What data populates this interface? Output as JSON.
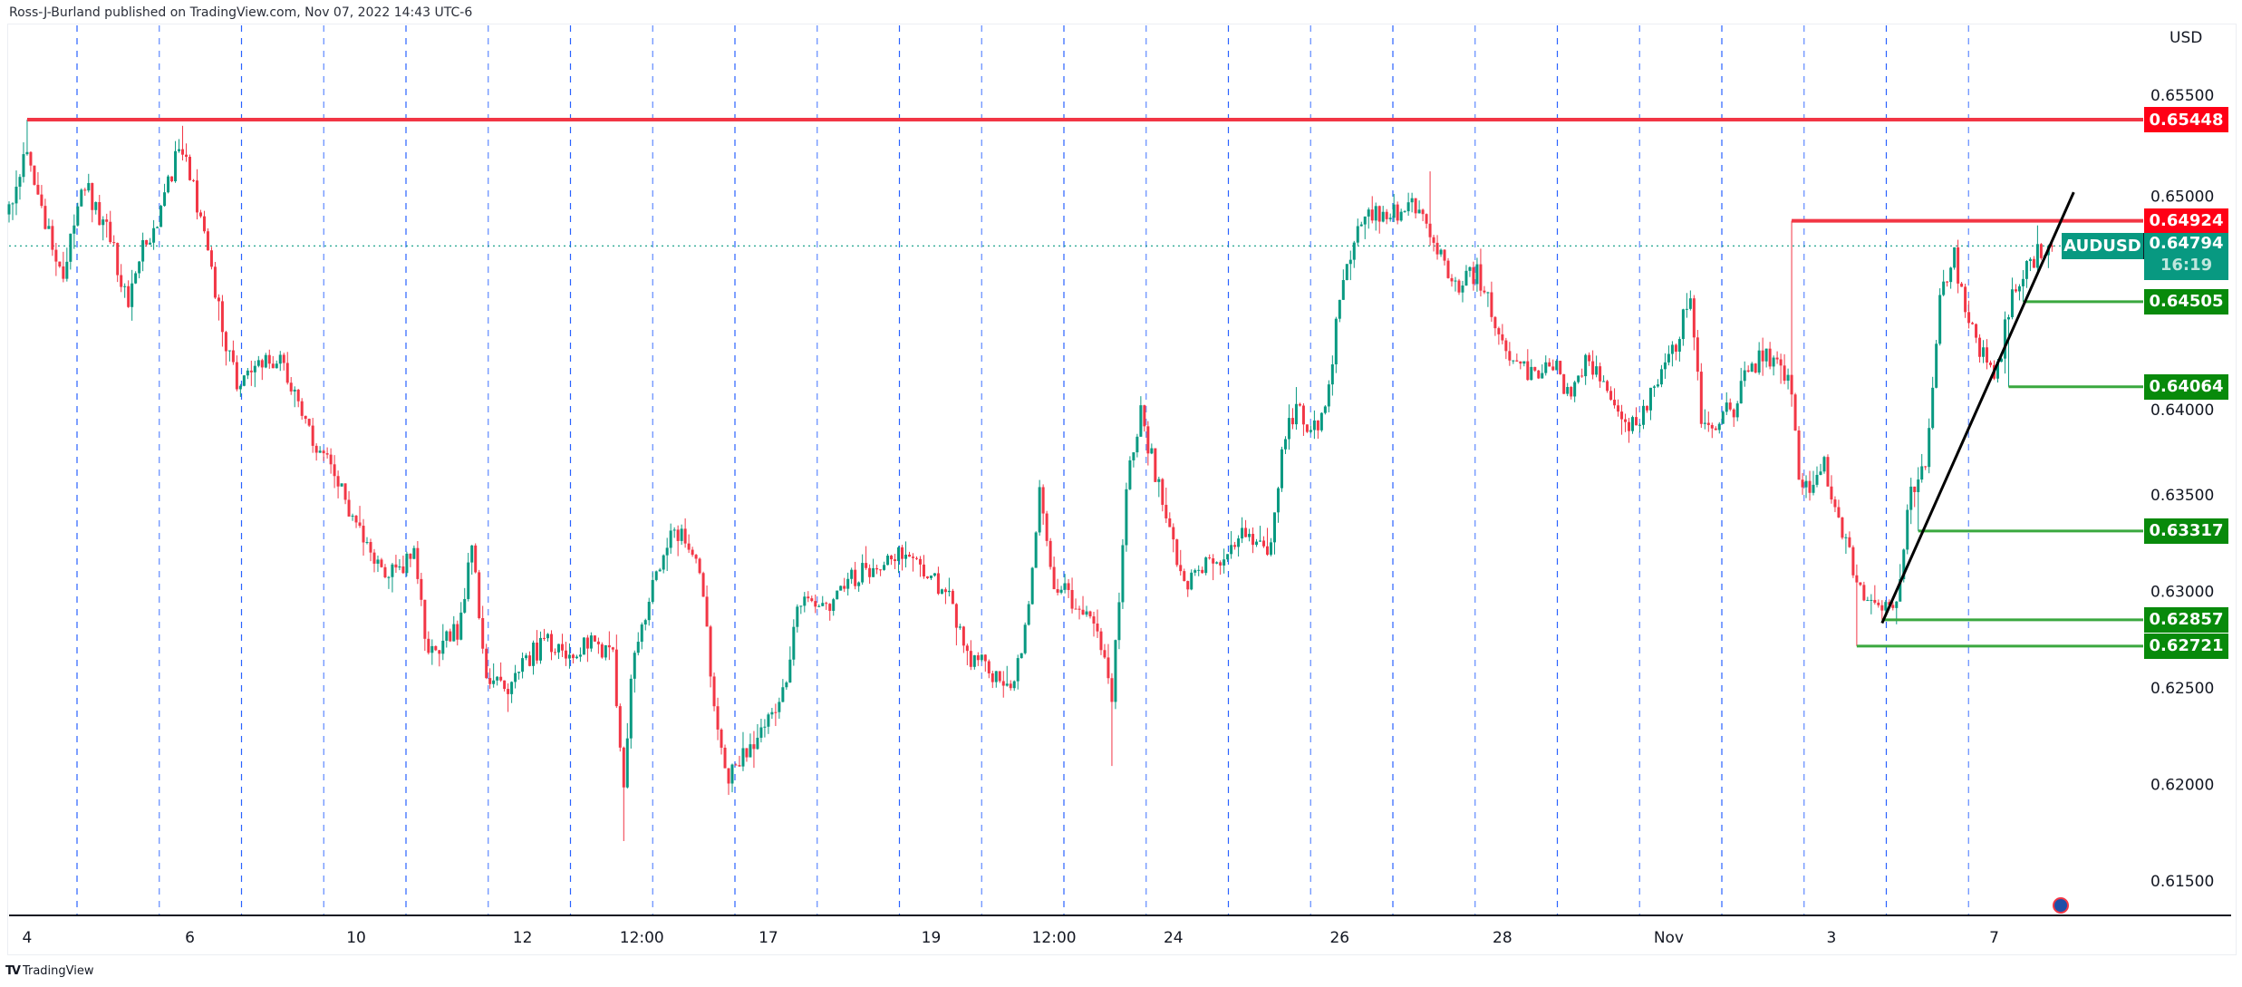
{
  "header": {
    "text": "Ross-J-Burland published on TradingView.com, Nov 07, 2022 14:43 UTC-6"
  },
  "footer": {
    "brand": "TradingView"
  },
  "colors": {
    "up": "#089981",
    "down": "#f23645",
    "resistance": "#f23645",
    "support": "#3aa83f",
    "support_label": "#088a0b",
    "resistance_label": "#ff0016",
    "grid": "#2962ff",
    "trendline": "#000000"
  },
  "chart_data": {
    "type": "candlestick",
    "symbol": "AUDUSD",
    "currency": "USD",
    "last_price": "0.64794",
    "countdown": "16:19",
    "ylim": [
      0.6125,
      0.6575
    ],
    "y_ticks": [
      "0.65500",
      "0.65000",
      "0.64000",
      "0.63500",
      "0.63000",
      "0.62500",
      "0.62000",
      "0.61500"
    ],
    "x_ticks": [
      {
        "label": "4",
        "bar": 5
      },
      {
        "label": "6",
        "bar": 50
      },
      {
        "label": "10",
        "bar": 96
      },
      {
        "label": "12",
        "bar": 142
      },
      {
        "label": "12:00",
        "bar": 175
      },
      {
        "label": "17",
        "bar": 210
      },
      {
        "label": "19",
        "bar": 255
      },
      {
        "label": "12:00",
        "bar": 289
      },
      {
        "label": "24",
        "bar": 322
      },
      {
        "label": "26",
        "bar": 368
      },
      {
        "label": "28",
        "bar": 413
      },
      {
        "label": "Nov",
        "bar": 459
      },
      {
        "label": "3",
        "bar": 504
      },
      {
        "label": "7",
        "bar": 549
      }
    ],
    "bars": 566,
    "close_path": [
      [
        0,
        0.64957
      ],
      [
        5,
        0.65327
      ],
      [
        9,
        0.64957
      ],
      [
        15,
        0.6466
      ],
      [
        21,
        0.65105
      ],
      [
        27,
        0.64883
      ],
      [
        33,
        0.64512
      ],
      [
        37,
        0.64771
      ],
      [
        43,
        0.65031
      ],
      [
        47,
        0.65327
      ],
      [
        51,
        0.65105
      ],
      [
        55,
        0.64734
      ],
      [
        59,
        0.64364
      ],
      [
        63,
        0.64105
      ],
      [
        69,
        0.64179
      ],
      [
        75,
        0.64216
      ],
      [
        80,
        0.63994
      ],
      [
        84,
        0.63771
      ],
      [
        90,
        0.63623
      ],
      [
        94,
        0.63401
      ],
      [
        100,
        0.63179
      ],
      [
        106,
        0.63105
      ],
      [
        112,
        0.63179
      ],
      [
        116,
        0.6266
      ],
      [
        124,
        0.62808
      ],
      [
        128,
        0.63215
      ],
      [
        132,
        0.62586
      ],
      [
        138,
        0.62512
      ],
      [
        143,
        0.6266
      ],
      [
        149,
        0.62734
      ],
      [
        155,
        0.62697
      ],
      [
        163,
        0.62734
      ],
      [
        167,
        0.6266
      ],
      [
        170,
        0.6203
      ],
      [
        173,
        0.62734
      ],
      [
        177,
        0.62956
      ],
      [
        183,
        0.63327
      ],
      [
        187,
        0.6329
      ],
      [
        191,
        0.63105
      ],
      [
        195,
        0.62438
      ],
      [
        199,
        0.6203
      ],
      [
        203,
        0.62141
      ],
      [
        209,
        0.62327
      ],
      [
        215,
        0.62512
      ],
      [
        218,
        0.62956
      ],
      [
        224,
        0.62882
      ],
      [
        230,
        0.63031
      ],
      [
        236,
        0.63105
      ],
      [
        242,
        0.63179
      ],
      [
        248,
        0.63215
      ],
      [
        254,
        0.63105
      ],
      [
        260,
        0.62956
      ],
      [
        266,
        0.6266
      ],
      [
        272,
        0.62586
      ],
      [
        278,
        0.62512
      ],
      [
        282,
        0.62956
      ],
      [
        285,
        0.63512
      ],
      [
        289,
        0.63031
      ],
      [
        295,
        0.62956
      ],
      [
        301,
        0.62808
      ],
      [
        305,
        0.62438
      ],
      [
        309,
        0.63549
      ],
      [
        313,
        0.6392
      ],
      [
        317,
        0.63623
      ],
      [
        321,
        0.63327
      ],
      [
        325,
        0.63031
      ],
      [
        329,
        0.63105
      ],
      [
        335,
        0.63179
      ],
      [
        341,
        0.63327
      ],
      [
        345,
        0.6329
      ],
      [
        349,
        0.63215
      ],
      [
        353,
        0.63846
      ],
      [
        356,
        0.63957
      ],
      [
        360,
        0.63846
      ],
      [
        364,
        0.6392
      ],
      [
        368,
        0.64512
      ],
      [
        372,
        0.64846
      ],
      [
        376,
        0.64957
      ],
      [
        382,
        0.64957
      ],
      [
        388,
        0.64994
      ],
      [
        392,
        0.6492
      ],
      [
        396,
        0.64734
      ],
      [
        400,
        0.64586
      ],
      [
        406,
        0.6466
      ],
      [
        412,
        0.64364
      ],
      [
        416,
        0.64179
      ],
      [
        422,
        0.64105
      ],
      [
        428,
        0.64179
      ],
      [
        431,
        0.64031
      ],
      [
        437,
        0.64216
      ],
      [
        443,
        0.63957
      ],
      [
        447,
        0.63846
      ],
      [
        451,
        0.6392
      ],
      [
        457,
        0.64142
      ],
      [
        461,
        0.6429
      ],
      [
        465,
        0.64549
      ],
      [
        468,
        0.6392
      ],
      [
        471,
        0.63883
      ],
      [
        477,
        0.63957
      ],
      [
        481,
        0.64179
      ],
      [
        487,
        0.64216
      ],
      [
        491,
        0.64105
      ],
      [
        493,
        0.64068
      ],
      [
        495,
        0.63549
      ],
      [
        499,
        0.63512
      ],
      [
        502,
        0.6366
      ],
      [
        508,
        0.63253
      ],
      [
        512,
        0.63031
      ],
      [
        518,
        0.62919
      ],
      [
        522,
        0.62956
      ],
      [
        526,
        0.63512
      ],
      [
        530,
        0.63697
      ],
      [
        534,
        0.64512
      ],
      [
        538,
        0.64734
      ],
      [
        541,
        0.64475
      ],
      [
        546,
        0.64216
      ],
      [
        550,
        0.64142
      ],
      [
        554,
        0.64586
      ],
      [
        557,
        0.6466
      ],
      [
        562,
        0.64771
      ],
      [
        565,
        0.64794
      ]
    ],
    "wick_extremes": [
      {
        "bar": 5,
        "high": 0.65448
      },
      {
        "bar": 170,
        "low": 0.61711
      },
      {
        "bar": 199,
        "low": 0.6195
      },
      {
        "bar": 48,
        "high": 0.65416
      },
      {
        "bar": 305,
        "low": 0.621
      },
      {
        "bar": 393,
        "high": 0.6518
      },
      {
        "bar": 493,
        "high": 0.64924
      },
      {
        "bar": 511,
        "low": 0.62721
      },
      {
        "bar": 518,
        "low": 0.62857
      },
      {
        "bar": 528,
        "low": 0.63317
      },
      {
        "bar": 553,
        "low": 0.64064
      },
      {
        "bar": 557,
        "low": 0.64505
      },
      {
        "bar": 561,
        "high": 0.649
      }
    ],
    "levels": [
      {
        "price": 0.65448,
        "label": "0.65448",
        "kind": "resistance",
        "from_bar": 5
      },
      {
        "price": 0.64924,
        "label": "0.64924",
        "kind": "resistance",
        "from_bar": 493
      },
      {
        "price": 0.64505,
        "label": "0.64505",
        "kind": "support",
        "from_bar": 557
      },
      {
        "price": 0.64064,
        "label": "0.64064",
        "kind": "support",
        "from_bar": 553
      },
      {
        "price": 0.63317,
        "label": "0.63317",
        "kind": "support",
        "from_bar": 528
      },
      {
        "price": 0.62857,
        "label": "0.62857",
        "kind": "support",
        "from_bar": 518
      },
      {
        "price": 0.62721,
        "label": "0.62721",
        "kind": "support",
        "from_bar": 511
      }
    ],
    "trendline": {
      "from": {
        "bar": 518,
        "price": 0.6284
      },
      "to": {
        "bar": 571,
        "price": 0.65072
      }
    }
  }
}
